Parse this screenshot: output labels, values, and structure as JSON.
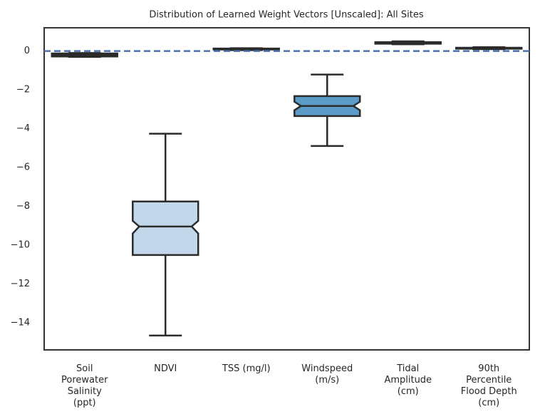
{
  "chart_data": {
    "type": "boxplot",
    "title": "Distribution of Learned Weight Vectors [Unscaled]: All Sites",
    "categories": [
      "Soil Porewater Salinity (ppt)",
      "NDVI",
      "TSS (mg/l)",
      "Windspeed (m/s)",
      "Tidal Amplitude (cm)",
      "90th Percentile Flood Depth (cm)"
    ],
    "boxes": [
      {
        "min": -0.3,
        "q1": -0.28,
        "notch_low": -0.24,
        "median": -0.2,
        "notch_high": -0.16,
        "q3": -0.12,
        "max": -0.1,
        "color": "#3a6ea5"
      },
      {
        "min": -14.66,
        "q1": -10.51,
        "notch_low": -9.4,
        "median": -9.04,
        "notch_high": -8.75,
        "q3": -7.75,
        "max": -4.26,
        "color": "#c3d7ea"
      },
      {
        "min": 0.05,
        "q1": 0.08,
        "notch_low": 0.09,
        "median": 0.1,
        "notch_high": 0.11,
        "q3": 0.13,
        "max": 0.15,
        "color": "#4a88c0"
      },
      {
        "min": -4.89,
        "q1": -3.35,
        "notch_low": -3.05,
        "median": -2.83,
        "notch_high": -2.61,
        "q3": -2.32,
        "max": -1.21,
        "color": "#5b9bc8"
      },
      {
        "min": 0.35,
        "q1": 0.38,
        "notch_low": 0.4,
        "median": 0.42,
        "notch_high": 0.44,
        "q3": 0.46,
        "max": 0.5,
        "color": "#2f6ba8"
      },
      {
        "min": 0.1,
        "q1": 0.12,
        "notch_low": 0.14,
        "median": 0.15,
        "notch_high": 0.16,
        "q3": 0.17,
        "max": 0.2,
        "color": "#8fbadd"
      }
    ],
    "reference_line": {
      "value": 0,
      "color": "#4c72b0"
    },
    "ylim": [
      -15.4,
      1.2
    ],
    "yticks": [
      {
        "value": 0,
        "label": "0"
      },
      {
        "value": -2,
        "label": "−2"
      },
      {
        "value": -4,
        "label": "−4"
      },
      {
        "value": -6,
        "label": "−6"
      },
      {
        "value": -8,
        "label": "−8"
      },
      {
        "value": -10,
        "label": "−10"
      },
      {
        "value": -12,
        "label": "−12"
      },
      {
        "value": -14,
        "label": "−14"
      }
    ],
    "grid": false
  }
}
